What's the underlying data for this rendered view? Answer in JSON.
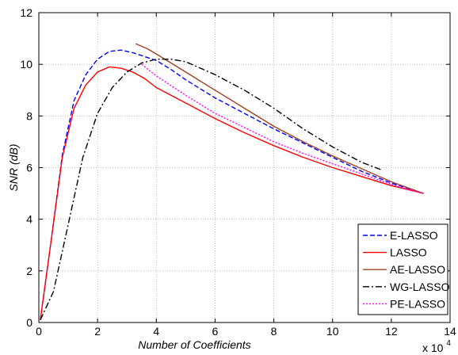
{
  "chart_data": {
    "type": "line",
    "title": "",
    "xlabel": "Number of Coefficients",
    "ylabel": "SNR (dB)",
    "x_multiplier_label": {
      "base": "x 10",
      "exp": "4"
    },
    "xlim": [
      0,
      14
    ],
    "ylim": [
      0,
      12
    ],
    "xticks": [
      0,
      2,
      4,
      6,
      8,
      10,
      12,
      14
    ],
    "yticks": [
      0,
      2,
      4,
      6,
      8,
      10,
      12
    ],
    "grid": true,
    "legend_position": "bottom-right",
    "series": [
      {
        "name": "E-LASSO",
        "color": "#0000ff",
        "dash": "6,3",
        "points": [
          [
            0.05,
            0.1
          ],
          [
            0.4,
            3
          ],
          [
            0.8,
            6.5
          ],
          [
            1.2,
            8.6
          ],
          [
            1.6,
            9.6
          ],
          [
            2.0,
            10.2
          ],
          [
            2.4,
            10.5
          ],
          [
            2.8,
            10.55
          ],
          [
            3.2,
            10.45
          ],
          [
            3.6,
            10.3
          ],
          [
            4.0,
            10.15
          ],
          [
            4.5,
            9.8
          ],
          [
            5.0,
            9.4
          ],
          [
            6.0,
            8.7
          ],
          [
            7.0,
            8.1
          ],
          [
            8.0,
            7.5
          ],
          [
            9.0,
            6.95
          ],
          [
            10.0,
            6.4
          ],
          [
            11.0,
            5.85
          ],
          [
            12.0,
            5.4
          ],
          [
            13.1,
            5.0
          ]
        ]
      },
      {
        "name": "LASSO",
        "color": "#ff0000",
        "dash": "",
        "points": [
          [
            0.05,
            0.1
          ],
          [
            0.4,
            3
          ],
          [
            0.8,
            6.4
          ],
          [
            1.2,
            8.3
          ],
          [
            1.6,
            9.2
          ],
          [
            2.0,
            9.7
          ],
          [
            2.4,
            9.9
          ],
          [
            2.8,
            9.85
          ],
          [
            3.2,
            9.7
          ],
          [
            3.6,
            9.45
          ],
          [
            4.0,
            9.1
          ],
          [
            5.0,
            8.5
          ],
          [
            6.0,
            7.9
          ],
          [
            7.0,
            7.35
          ],
          [
            8.0,
            6.85
          ],
          [
            9.0,
            6.4
          ],
          [
            10.0,
            6.0
          ],
          [
            11.0,
            5.65
          ],
          [
            12.0,
            5.3
          ],
          [
            13.1,
            5.0
          ]
        ]
      },
      {
        "name": "AE-LASSO",
        "color": "#a0401e",
        "dash": "",
        "points": [
          [
            3.3,
            10.8
          ],
          [
            3.7,
            10.6
          ],
          [
            4.0,
            10.4
          ],
          [
            4.5,
            10.05
          ],
          [
            5.0,
            9.7
          ],
          [
            6.0,
            9.0
          ],
          [
            7.0,
            8.3
          ],
          [
            8.0,
            7.6
          ],
          [
            9.0,
            7.0
          ],
          [
            10.0,
            6.45
          ],
          [
            11.0,
            5.95
          ],
          [
            12.0,
            5.45
          ],
          [
            13.1,
            5.0
          ]
        ]
      },
      {
        "name": "WG-LASSO",
        "color": "#000000",
        "dash": "8,3,2,3",
        "points": [
          [
            0.05,
            0.1
          ],
          [
            0.5,
            1.2
          ],
          [
            1.0,
            3.8
          ],
          [
            1.5,
            6.4
          ],
          [
            2.0,
            8.1
          ],
          [
            2.5,
            9.1
          ],
          [
            3.0,
            9.7
          ],
          [
            3.5,
            10.05
          ],
          [
            4.0,
            10.2
          ],
          [
            4.5,
            10.2
          ],
          [
            5.0,
            10.1
          ],
          [
            6.0,
            9.6
          ],
          [
            7.0,
            9.0
          ],
          [
            8.0,
            8.3
          ],
          [
            9.0,
            7.5
          ],
          [
            10.0,
            6.8
          ],
          [
            11.0,
            6.2
          ],
          [
            11.7,
            5.9
          ]
        ]
      },
      {
        "name": "PE-LASSO",
        "color": "#ff00ff",
        "dash": "2,2",
        "points": [
          [
            3.5,
            10.0
          ],
          [
            4.0,
            9.55
          ],
          [
            5.0,
            8.8
          ],
          [
            6.0,
            8.1
          ],
          [
            7.0,
            7.55
          ],
          [
            8.0,
            7.0
          ],
          [
            9.0,
            6.55
          ],
          [
            10.0,
            6.15
          ],
          [
            11.0,
            5.75
          ],
          [
            12.0,
            5.35
          ],
          [
            13.1,
            5.0
          ]
        ]
      }
    ]
  }
}
